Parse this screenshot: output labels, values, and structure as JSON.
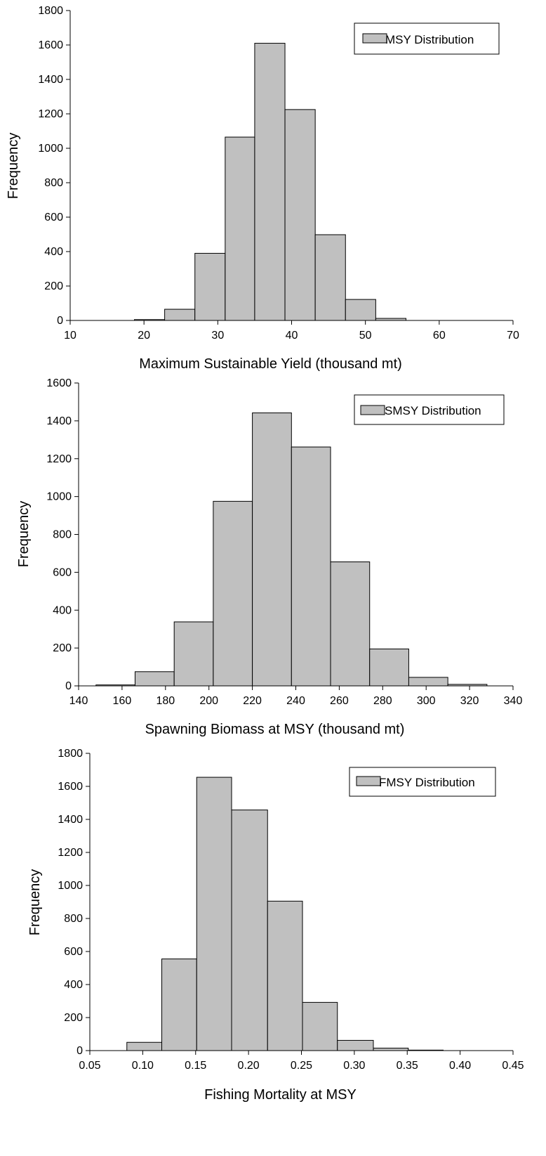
{
  "colors": {
    "bar_fill": "#c0c0c0",
    "stroke": "#000000",
    "background": "#ffffff"
  },
  "chart_data": [
    {
      "type": "bar",
      "title": "",
      "xlabel": "Maximum Sustainable Yield (thousand mt)",
      "ylabel": "Frequency",
      "xlim": [
        10,
        70
      ],
      "ylim": [
        0,
        1800
      ],
      "xticks": [
        "10",
        "20",
        "30",
        "40",
        "50",
        "60",
        "70"
      ],
      "yticks": [
        "0",
        "200",
        "400",
        "600",
        "800",
        "1000",
        "1200",
        "1400",
        "1600",
        "1800"
      ],
      "legend": {
        "position": "top-right",
        "label": "MSY Distribution"
      },
      "grid": false,
      "bins": [
        {
          "start": 18.7,
          "end": 22.8,
          "value": 5
        },
        {
          "start": 22.8,
          "end": 26.9,
          "value": 65
        },
        {
          "start": 26.9,
          "end": 31.0,
          "value": 390
        },
        {
          "start": 31.0,
          "end": 35.0,
          "value": 1065
        },
        {
          "start": 35.0,
          "end": 39.1,
          "value": 1610
        },
        {
          "start": 39.1,
          "end": 43.2,
          "value": 1225
        },
        {
          "start": 43.2,
          "end": 47.3,
          "value": 498
        },
        {
          "start": 47.3,
          "end": 51.4,
          "value": 122
        },
        {
          "start": 51.4,
          "end": 55.5,
          "value": 12
        }
      ]
    },
    {
      "type": "bar",
      "title": "",
      "xlabel": "Spawning Biomass at MSY (thousand mt)",
      "ylabel": "Frequency",
      "xlim": [
        140,
        340
      ],
      "ylim": [
        0,
        1600
      ],
      "xticks": [
        "140",
        "160",
        "180",
        "200",
        "220",
        "240",
        "260",
        "280",
        "300",
        "320",
        "340"
      ],
      "yticks": [
        "0",
        "200",
        "400",
        "600",
        "800",
        "1000",
        "1200",
        "1400",
        "1600"
      ],
      "legend": {
        "position": "top-right",
        "label": "SMSY Distribution"
      },
      "grid": false,
      "bins": [
        {
          "start": 148,
          "end": 166,
          "value": 5
        },
        {
          "start": 166,
          "end": 184,
          "value": 75
        },
        {
          "start": 184,
          "end": 202,
          "value": 338
        },
        {
          "start": 202,
          "end": 220,
          "value": 975
        },
        {
          "start": 220,
          "end": 238,
          "value": 1442
        },
        {
          "start": 238,
          "end": 256,
          "value": 1262
        },
        {
          "start": 256,
          "end": 274,
          "value": 655
        },
        {
          "start": 274,
          "end": 292,
          "value": 195
        },
        {
          "start": 292,
          "end": 310,
          "value": 45
        },
        {
          "start": 310,
          "end": 328,
          "value": 8
        }
      ]
    },
    {
      "type": "bar",
      "title": "",
      "xlabel": "Fishing Mortality at MSY",
      "ylabel": "Frequency",
      "xlim": [
        0.05,
        0.45
      ],
      "ylim": [
        0,
        1800
      ],
      "xticks": [
        "0.05",
        "0.10",
        "0.15",
        "0.20",
        "0.25",
        "0.30",
        "0.35",
        "0.40",
        "0.45"
      ],
      "yticks": [
        "0",
        "200",
        "400",
        "600",
        "800",
        "1000",
        "1200",
        "1400",
        "1600",
        "1800"
      ],
      "legend": {
        "position": "top-right",
        "label": "FMSY Distribution"
      },
      "grid": false,
      "bins": [
        {
          "start": 0.085,
          "end": 0.118,
          "value": 50
        },
        {
          "start": 0.118,
          "end": 0.151,
          "value": 555
        },
        {
          "start": 0.151,
          "end": 0.184,
          "value": 1655
        },
        {
          "start": 0.184,
          "end": 0.218,
          "value": 1457
        },
        {
          "start": 0.218,
          "end": 0.251,
          "value": 905
        },
        {
          "start": 0.251,
          "end": 0.284,
          "value": 292
        },
        {
          "start": 0.284,
          "end": 0.318,
          "value": 62
        },
        {
          "start": 0.318,
          "end": 0.351,
          "value": 15
        },
        {
          "start": 0.351,
          "end": 0.384,
          "value": 3
        }
      ]
    }
  ]
}
